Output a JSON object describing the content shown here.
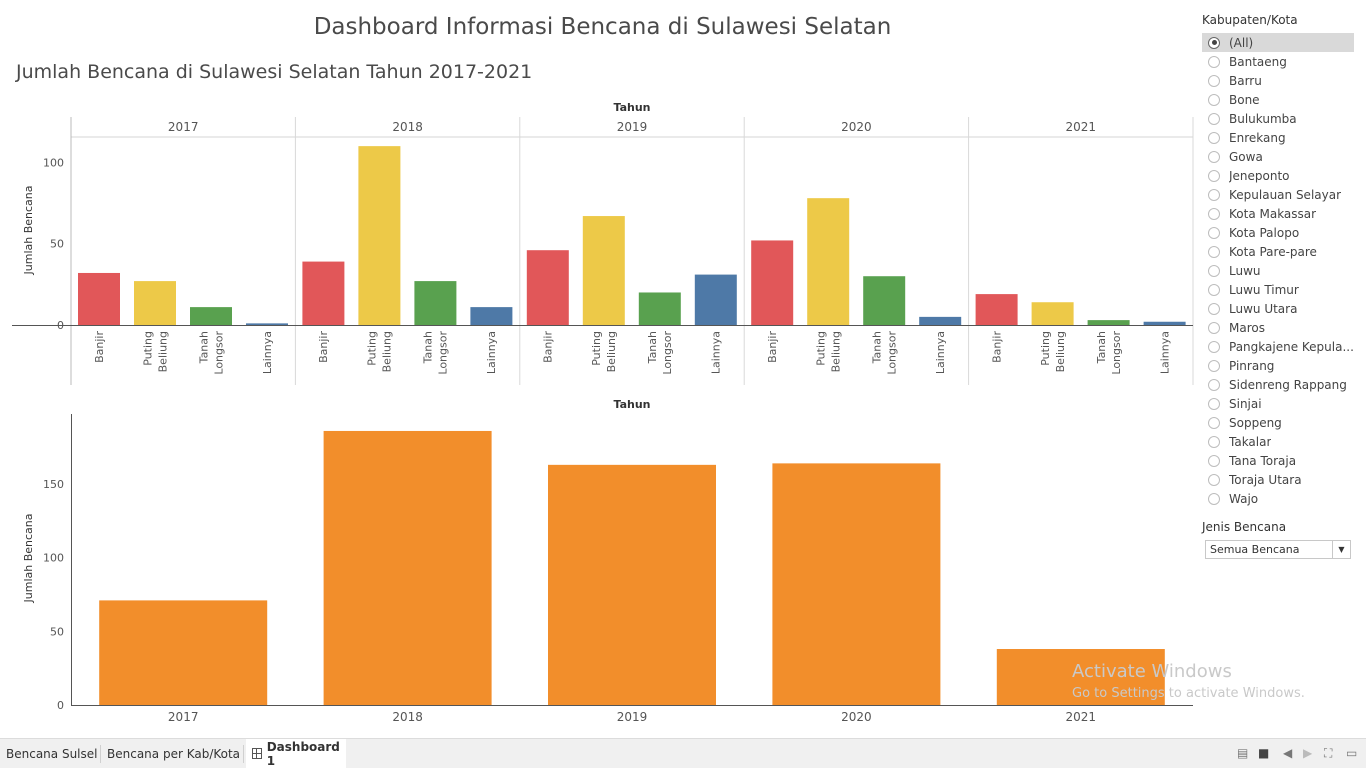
{
  "dashboard": {
    "title": "Dashboard Informasi Bencana di Sulawesi Selatan",
    "sheet_title": "Jumlah Bencana di Sulawesi Selatan Tahun 2017-2021"
  },
  "chart_data": [
    {
      "type": "bar",
      "column_header": "Tahun",
      "ylabel": "Jumlah Bencana",
      "ylim": [
        0,
        120
      ],
      "yticks": [
        0,
        50,
        100
      ],
      "panels": [
        "2017",
        "2018",
        "2019",
        "2020",
        "2021"
      ],
      "categories": [
        [
          "Banjir"
        ],
        [
          "Puting",
          "Beliung"
        ],
        [
          "Tanah",
          "Longsor"
        ],
        [
          "Lainnya"
        ]
      ],
      "colors": [
        "#e15759",
        "#edc948",
        "#59a14f",
        "#4e79a7"
      ],
      "values": [
        [
          32,
          27,
          11,
          1
        ],
        [
          39,
          110,
          27,
          11
        ],
        [
          46,
          67,
          20,
          31
        ],
        [
          52,
          78,
          30,
          5
        ],
        [
          19,
          14,
          3,
          2
        ]
      ]
    },
    {
      "type": "bar",
      "column_header": "Tahun",
      "ylabel": "Jumlah Bencana",
      "ylim": [
        0,
        195
      ],
      "yticks": [
        0,
        50,
        100,
        150
      ],
      "categories": [
        "2017",
        "2018",
        "2019",
        "2020",
        "2021"
      ],
      "values": [
        71,
        186,
        163,
        164,
        38
      ],
      "color": "#f28e2b"
    }
  ],
  "filters": {
    "kab_title": "Kabupaten/Kota",
    "kab_options": [
      "(All)",
      "Bantaeng",
      "Barru",
      "Bone",
      "Bulukumba",
      "Enrekang",
      "Gowa",
      "Jeneponto",
      "Kepulauan Selayar",
      "Kota Makassar",
      "Kota Palopo",
      "Kota Pare-pare",
      "Luwu",
      "Luwu Timur",
      "Luwu Utara",
      "Maros",
      "Pangkajene Kepula...",
      "Pinrang",
      "Sidenreng Rappang",
      "Sinjai",
      "Soppeng",
      "Takalar",
      "Tana Toraja",
      "Toraja Utara",
      "Wajo"
    ],
    "kab_selected": "(All)",
    "jenis_title": "Jenis Bencana",
    "jenis_value": "Semua Bencana"
  },
  "watermark": {
    "line1": "Activate Windows",
    "line2": "Go to Settings to activate Windows."
  },
  "tabs": [
    {
      "label": "Bencana Sulsel",
      "active": false
    },
    {
      "label": "Bencana per Kab/Kota",
      "active": false
    },
    {
      "label": "Dashboard 1",
      "active": true
    }
  ]
}
